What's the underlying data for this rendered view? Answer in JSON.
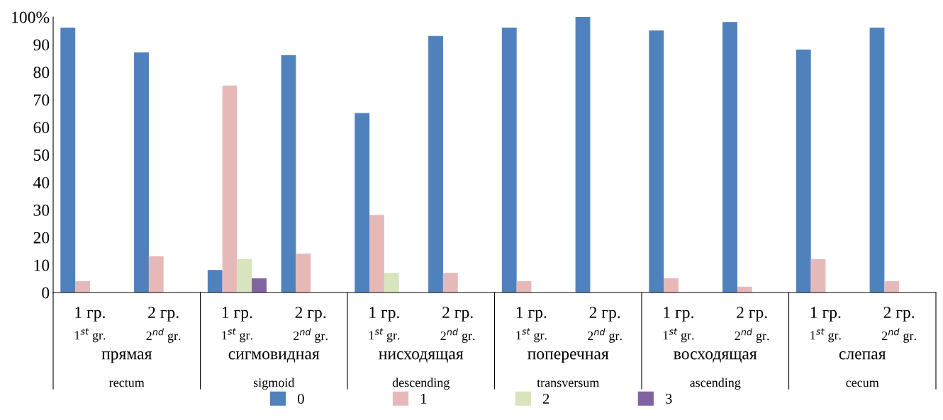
{
  "chart_data": {
    "type": "bar",
    "categories": [
      "1 гр.\n1$^{st}$ gr.",
      "2 гр.\n2$^{nd}$ gr.",
      "1 гр.\n1$^{st}$ gr.",
      "2 гр.\n2$^{nd}$ gr.",
      "1 гр.\n1$^{st}$ gr.",
      "2 гр.\n2$^{nd}$ gr.",
      "1 гр.\n1$^{st}$ gr.",
      "2 гр.\n2$^{nd}$ gr.",
      "1 гр.\n1$^{st}$ gr.",
      "2 гр.\n2$^{nd}$ gr.",
      "1 гр.\n1$^{st}$ gr.",
      "2 гр.\n2$^{nd}$ gr."
    ],
    "series": [
      {
        "name": "0",
        "color": "#4f81bd",
        "values": [
          96,
          87,
          8,
          86,
          65,
          93,
          96,
          100,
          95,
          98,
          88,
          96
        ]
      },
      {
        "name": "1",
        "color": "#e6b9b8",
        "values": [
          4,
          13,
          75,
          14,
          28,
          7,
          4,
          null,
          5,
          2,
          12,
          4
        ]
      },
      {
        "name": "2",
        "color": "#d7e4bd",
        "values": [
          null,
          null,
          12,
          null,
          7,
          null,
          null,
          null,
          null,
          null,
          null,
          null
        ]
      },
      {
        "name": "3",
        "color": "#8064a2",
        "values": [
          null,
          null,
          5,
          null,
          null,
          null,
          null,
          null,
          null,
          null,
          null,
          null
        ]
      }
    ],
    "annotations": [
      "прямая\nrectum",
      "сигмовидная\nsigmoid",
      "нисходящая\ndescending",
      "поперечная\ntransversum",
      "восходящая\nascending",
      "слепая\ncecum"
    ],
    "ylim": [
      0,
      100
    ],
    "yticks": [
      0,
      10,
      20,
      30,
      40,
      50,
      60,
      70,
      80,
      90,
      {
        "value": 100,
        "label": "100%"
      }
    ],
    "grid": false,
    "legend": "bottom"
  }
}
